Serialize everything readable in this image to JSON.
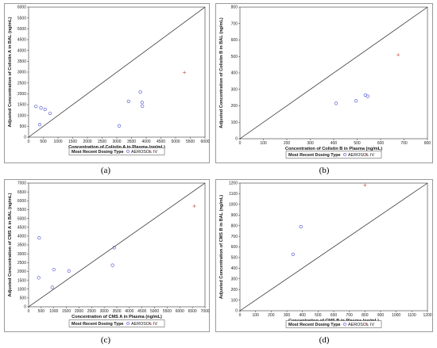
{
  "chart_data": [
    {
      "type": "scatter",
      "caption": "(a)",
      "xlabel": "Concentration of Colistin A in Plasma (ng/mL)",
      "ylabel": "Adjusted Concentration of Colistin A in BAL (ng/mL)",
      "xlim": [
        0,
        6000
      ],
      "ylim": [
        0,
        6000
      ],
      "xticks": [
        0,
        500,
        1000,
        1500,
        2000,
        2500,
        3000,
        3500,
        4000,
        4500,
        5000,
        5500,
        6000
      ],
      "yticks": [
        0,
        500,
        1000,
        1500,
        2000,
        2500,
        3000,
        3500,
        4000,
        4500,
        5000,
        5500,
        6000
      ],
      "identity_line": true,
      "legend": {
        "title": "Most Recent Dosing Type",
        "entries": [
          "AEROSOL",
          "IV"
        ]
      },
      "series": [
        {
          "name": "AEROSOL",
          "marker": "circle",
          "color": "#4a4fd1",
          "points": [
            [
              250,
              1420
            ],
            [
              380,
              580
            ],
            [
              420,
              1350
            ],
            [
              560,
              1280
            ],
            [
              730,
              1100
            ],
            [
              3080,
              520
            ],
            [
              3400,
              1650
            ],
            [
              3800,
              2080
            ],
            [
              3860,
              1600
            ],
            [
              3870,
              1430
            ]
          ]
        },
        {
          "name": "IV",
          "marker": "plus",
          "color": "#c04a4a",
          "points": [
            [
              5300,
              2980
            ]
          ]
        }
      ]
    },
    {
      "type": "scatter",
      "caption": "(b)",
      "xlabel": "Concentration of Colistin B in Plasma (ng/mL)",
      "ylabel": "Adjusted Concentration of Colistin B in BAL (ng/mL)",
      "xlim": [
        0,
        800
      ],
      "ylim": [
        0,
        800
      ],
      "xticks": [
        0,
        100,
        200,
        300,
        400,
        500,
        600,
        700,
        800
      ],
      "yticks": [
        0,
        100,
        200,
        300,
        400,
        500,
        600,
        700,
        800
      ],
      "identity_line": true,
      "legend": {
        "title": "Most Recent Dosing Type",
        "entries": [
          "AEROSOL",
          "IV"
        ]
      },
      "series": [
        {
          "name": "AEROSOL",
          "marker": "circle",
          "color": "#4a4fd1",
          "points": [
            [
              410,
              215
            ],
            [
              495,
              230
            ],
            [
              535,
              265
            ],
            [
              545,
              258
            ]
          ]
        },
        {
          "name": "IV",
          "marker": "plus",
          "color": "#c04a4a",
          "points": [
            [
              675,
              510
            ]
          ]
        }
      ]
    },
    {
      "type": "scatter",
      "caption": "(c)",
      "xlabel": "Concentration of CMS A in Plasma (ng/mL)",
      "ylabel": "Adjusted Concentration of CMS A in BAL (ng/mL)",
      "xlim": [
        0,
        7000
      ],
      "ylim": [
        0,
        7000
      ],
      "xticks": [
        0,
        500,
        1000,
        1500,
        2000,
        2500,
        3000,
        3500,
        4000,
        4500,
        5000,
        5500,
        6000,
        6500,
        7000
      ],
      "yticks": [
        0,
        500,
        1000,
        1500,
        2000,
        2500,
        3000,
        3500,
        4000,
        4500,
        5000,
        5500,
        6000,
        6500,
        7000
      ],
      "identity_line": true,
      "legend": {
        "title": "Most Recent Dosing Type",
        "entries": [
          "AEROSOL",
          "IV"
        ]
      },
      "series": [
        {
          "name": "AEROSOL",
          "marker": "circle",
          "color": "#4a4fd1",
          "points": [
            [
              420,
              3900
            ],
            [
              400,
              1640
            ],
            [
              940,
              1100
            ],
            [
              1000,
              2100
            ],
            [
              1600,
              2030
            ],
            [
              3330,
              2350
            ],
            [
              3400,
              3350
            ]
          ]
        },
        {
          "name": "IV",
          "marker": "plus",
          "color": "#c04a4a",
          "points": [
            [
              6580,
              5700
            ]
          ]
        }
      ]
    },
    {
      "type": "scatter",
      "caption": "(d)",
      "xlabel": "Concentration of CMS B in Plasma (ng/mL)",
      "ylabel": "Adjusted Concentration of CMS B in BAL (ng/mL)",
      "xlim": [
        0,
        1200
      ],
      "ylim": [
        0,
        1200
      ],
      "xticks": [
        0,
        100,
        200,
        300,
        400,
        500,
        600,
        700,
        800,
        900,
        1000,
        1100,
        1200
      ],
      "yticks": [
        0,
        100,
        200,
        300,
        400,
        500,
        600,
        700,
        800,
        900,
        1000,
        1100,
        1200
      ],
      "identity_line": true,
      "legend": {
        "title": "Most Recent Dosing Type",
        "entries": [
          "AEROSOL",
          "IV"
        ]
      },
      "series": [
        {
          "name": "AEROSOL",
          "marker": "circle",
          "color": "#4a4fd1",
          "points": [
            [
              340,
              530
            ],
            [
              390,
              790
            ]
          ]
        },
        {
          "name": "IV",
          "marker": "plus",
          "color": "#c04a4a",
          "points": [
            [
              800,
              1180
            ]
          ]
        }
      ]
    }
  ]
}
